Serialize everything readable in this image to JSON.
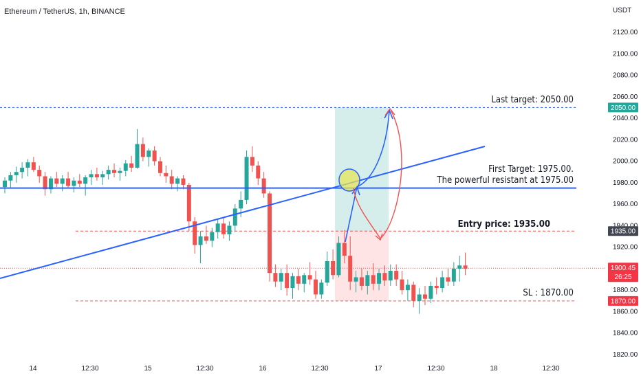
{
  "header": {
    "title": "Ethereum / TetherUS, 1h, BINANCE"
  },
  "price_axis": {
    "currency": "USDT",
    "ticks": [
      "2120.00",
      "2100.00",
      "2080.00",
      "2060.00",
      "2040.00",
      "2020.00",
      "2000.00",
      "1980.00",
      "1960.00",
      "1940.00",
      "1920.00",
      "1900.00",
      "1880.00",
      "1860.00",
      "1840.00",
      "1820.00"
    ]
  },
  "time_axis": {
    "ticks": [
      "14",
      "12:30",
      "15",
      "12:30",
      "16",
      "12:30",
      "17",
      "12:30",
      "18",
      "12:30"
    ]
  },
  "price_tags": {
    "last_target": "2050.00",
    "entry": "1935.00",
    "current_price": "1900.45",
    "countdown": "26:25",
    "stop_loss": "1870.00"
  },
  "annotations": {
    "last_target": "Last target: 2050.00",
    "first_target": "First Target: 1975.00.",
    "resistance": "The powerful resistant at 1975.00",
    "entry": "Entry price: 1935.00",
    "stop_loss": "SL : 1870.00"
  },
  "colors": {
    "up": "#26a69a",
    "down": "#ef5350",
    "trendline": "#2962ff",
    "target_zone": "#b2dfdb",
    "stop_zone": "#ffcdd2",
    "target_tag": "#26a69a",
    "stop_tag": "#f23645",
    "entry_tag": "#434651"
  },
  "chart_data": {
    "type": "candlestick",
    "symbol": "ETH/USDT",
    "timeframe": "1h",
    "exchange": "BINANCE",
    "ylim": [
      1815,
      2130
    ],
    "levels": {
      "last_target": 2050,
      "resistance": 1975,
      "entry": 1935,
      "stop_loss": 1870,
      "current": 1900.45
    },
    "candles": [
      [
        1976,
        1985,
        1970,
        1982
      ],
      [
        1982,
        1990,
        1975,
        1987
      ],
      [
        1987,
        1995,
        1980,
        1990
      ],
      [
        1990,
        1999,
        1984,
        1994
      ],
      [
        1994,
        2002,
        1986,
        1999
      ],
      [
        1999,
        2004,
        1990,
        1992
      ],
      [
        1992,
        1996,
        1980,
        1986
      ],
      [
        1986,
        1990,
        1968,
        1974
      ],
      [
        1974,
        1986,
        1970,
        1984
      ],
      [
        1984,
        1990,
        1976,
        1979
      ],
      [
        1979,
        1987,
        1972,
        1984
      ],
      [
        1984,
        1990,
        1975,
        1977
      ],
      [
        1977,
        1985,
        1971,
        1982
      ],
      [
        1982,
        1988,
        1976,
        1979
      ],
      [
        1979,
        1987,
        1968,
        1985
      ],
      [
        1985,
        1992,
        1978,
        1988
      ],
      [
        1988,
        1994,
        1982,
        1985
      ],
      [
        1985,
        1991,
        1978,
        1988
      ],
      [
        1988,
        1996,
        1983,
        1992
      ],
      [
        1992,
        1998,
        1985,
        1989
      ],
      [
        1989,
        1994,
        1982,
        1991
      ],
      [
        1991,
        2001,
        1986,
        1998
      ],
      [
        1998,
        2005,
        1990,
        1994
      ],
      [
        1994,
        2030,
        1993,
        2016
      ],
      [
        2016,
        2022,
        2000,
        2004
      ],
      [
        2004,
        2012,
        1995,
        2010
      ],
      [
        2010,
        2014,
        1996,
        2000
      ],
      [
        2000,
        2004,
        1986,
        1989
      ],
      [
        1989,
        1996,
        1980,
        1986
      ],
      [
        1986,
        1992,
        1974,
        1979
      ],
      [
        1979,
        1986,
        1972,
        1984
      ],
      [
        1984,
        1987,
        1974,
        1978
      ],
      [
        1978,
        1980,
        1935,
        1944
      ],
      [
        1944,
        1948,
        1914,
        1922
      ],
      [
        1922,
        1935,
        1905,
        1930
      ],
      [
        1930,
        1940,
        1923,
        1926
      ],
      [
        1926,
        1938,
        1920,
        1934
      ],
      [
        1934,
        1946,
        1928,
        1942
      ],
      [
        1942,
        1948,
        1928,
        1932
      ],
      [
        1932,
        1944,
        1926,
        1940
      ],
      [
        1940,
        1960,
        1934,
        1956
      ],
      [
        1956,
        1972,
        1948,
        1964
      ],
      [
        1964,
        2010,
        1960,
        2004
      ],
      [
        2004,
        2014,
        1990,
        1996
      ],
      [
        1996,
        2000,
        1978,
        1984
      ],
      [
        1984,
        1990,
        1966,
        1970
      ],
      [
        1970,
        1972,
        1888,
        1896
      ],
      [
        1896,
        1904,
        1883,
        1888
      ],
      [
        1888,
        1900,
        1880,
        1896
      ],
      [
        1896,
        1904,
        1875,
        1882
      ],
      [
        1882,
        1896,
        1872,
        1893
      ],
      [
        1893,
        1900,
        1880,
        1886
      ],
      [
        1886,
        1896,
        1878,
        1894
      ],
      [
        1894,
        1906,
        1885,
        1890
      ],
      [
        1890,
        1898,
        1872,
        1876
      ],
      [
        1876,
        1890,
        1872,
        1887
      ],
      [
        1887,
        1916,
        1884,
        1907
      ],
      [
        1907,
        1918,
        1890,
        1894
      ],
      [
        1894,
        1930,
        1892,
        1924
      ],
      [
        1924,
        1936,
        1905,
        1912
      ],
      [
        1912,
        1930,
        1880,
        1888
      ],
      [
        1888,
        1898,
        1878,
        1892
      ],
      [
        1892,
        1900,
        1880,
        1884
      ],
      [
        1884,
        1898,
        1876,
        1894
      ],
      [
        1894,
        1905,
        1880,
        1886
      ],
      [
        1886,
        1900,
        1880,
        1896
      ],
      [
        1896,
        1903,
        1884,
        1889
      ],
      [
        1889,
        1904,
        1884,
        1898
      ],
      [
        1898,
        1904,
        1884,
        1890
      ],
      [
        1890,
        1898,
        1876,
        1880
      ],
      [
        1880,
        1890,
        1870,
        1885
      ],
      [
        1885,
        1888,
        1864,
        1870
      ],
      [
        1870,
        1882,
        1858,
        1876
      ],
      [
        1876,
        1884,
        1866,
        1872
      ],
      [
        1872,
        1888,
        1868,
        1884
      ],
      [
        1884,
        1892,
        1876,
        1882
      ],
      [
        1882,
        1898,
        1878,
        1892
      ],
      [
        1892,
        1900,
        1884,
        1888
      ],
      [
        1888,
        1906,
        1884,
        1900
      ],
      [
        1900,
        1912,
        1888,
        1903
      ],
      [
        1903,
        1915,
        1894,
        1900
      ]
    ]
  }
}
